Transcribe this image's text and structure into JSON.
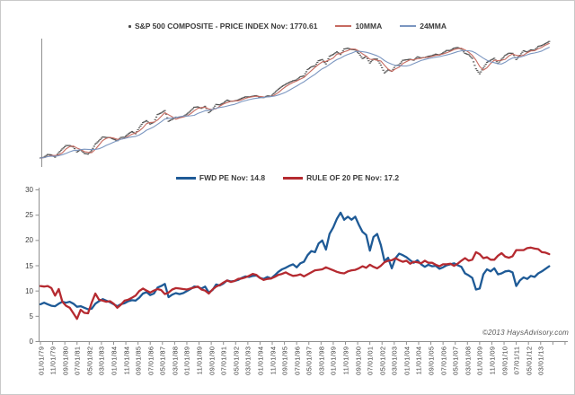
{
  "page": {
    "background": "#ffffff",
    "border_color": "#c9c9c9",
    "copyright": "©2013 HaysAdvisory.com"
  },
  "axis": {
    "tick_color": "#909090",
    "label_color": "#404040",
    "x_tick_labels": [
      "01/01/79",
      "11/01/79",
      "09/01/80",
      "07/01/81",
      "05/01/82",
      "03/01/83",
      "01/01/84",
      "11/01/84",
      "09/01/85",
      "07/01/86",
      "05/01/87",
      "03/01/88",
      "01/01/89",
      "11/01/89",
      "09/01/90",
      "07/01/91",
      "05/01/92",
      "03/01/93",
      "01/01/94",
      "11/01/94",
      "09/01/95",
      "07/01/96",
      "05/01/97",
      "03/01/98",
      "01/01/99",
      "11/01/99",
      "09/01/00",
      "07/01/01",
      "05/01/02",
      "03/01/03",
      "01/01/04",
      "11/01/04",
      "09/01/05",
      "07/01/06",
      "05/01/07",
      "03/01/08",
      "01/01/09",
      "11/01/09",
      "09/01/10",
      "07/01/11",
      "05/01/12",
      "03/01/13"
    ],
    "x_tick_step_months": 10
  },
  "chart_data": [
    {
      "type": "line",
      "title": "",
      "y_scale": "log",
      "y_range_hint": [
        95,
        1900
      ],
      "x_start": "1979-01",
      "x_step_months": 3,
      "legend_position": "top-center",
      "grid": false,
      "legend": [
        {
          "label": "S&P 500 COMPOSITE - PRICE INDEX Nov: 1770.61",
          "marker": "dot",
          "color": "#4a4a4a"
        },
        {
          "label": "10MMA",
          "marker": "line",
          "color": "#c66a60"
        },
        {
          "label": "24MMA",
          "marker": "line",
          "color": "#7b96c0"
        }
      ],
      "series": [
        {
          "name": "S&P 500 COMPOSITE - PRICE INDEX",
          "style": "marker-dash",
          "color": "#4a4a4a",
          "values": [
            100,
            102,
            109,
            108,
            102,
            114,
            125,
            136,
            136,
            131,
            116,
            123,
            112,
            110,
            120,
            141,
            153,
            168,
            166,
            165,
            159,
            153,
            166,
            167,
            181,
            192,
            182,
            211,
            239,
            251,
            231,
            242,
            292,
            304,
            322,
            247,
            259,
            274,
            272,
            278,
            295,
            318,
            349,
            353,
            340,
            358,
            306,
            330,
            375,
            371,
            388,
            417,
            404,
            408,
            418,
            436,
            452,
            451,
            459,
            466,
            446,
            444,
            463,
            459,
            501,
            545,
            584,
            616,
            645,
            671,
            687,
            741,
            757,
            885,
            947,
            970,
            1102,
            1134,
            1017,
            1229,
            1286,
            1373,
            1283,
            1469,
            1499,
            1455,
            1437,
            1320,
            1160,
            1224,
            1041,
            1148,
            1147,
            990,
            815,
            880,
            848,
            975,
            996,
            1112,
            1126,
            1141,
            1115,
            1212,
            1181,
            1191,
            1229,
            1248,
            1295,
            1270,
            1336,
            1418,
            1421,
            1503,
            1527,
            1468,
            1323,
            1280,
            1166,
            903,
            798,
            919,
            1057,
            1115,
            1169,
            1031,
            1141,
            1258,
            1326,
            1321,
            1131,
            1258,
            1408,
            1362,
            1441,
            1426,
            1569,
            1606,
            1682,
            1770
          ]
        },
        {
          "name": "10MMA",
          "style": "line",
          "color": "#c66a60",
          "derived": "rolling_mean_quarters_3"
        },
        {
          "name": "24MMA",
          "style": "line",
          "color": "#7b96c0",
          "derived": "rolling_mean_quarters_8"
        }
      ],
      "last_point": {
        "date": "Nov 2013",
        "value": 1770.61
      }
    },
    {
      "type": "line",
      "title": "",
      "ylim": [
        0,
        30
      ],
      "yticks": [
        0,
        5,
        10,
        15,
        20,
        25,
        30
      ],
      "x_start": "1979-01",
      "x_step_months": 3,
      "legend_position": "top-center",
      "grid": false,
      "legend": [
        {
          "label": "FWD PE Nov: 14.8",
          "marker": "line",
          "color": "#1e5a96"
        },
        {
          "label": "RULE OF 20 PE Nov: 17.2",
          "marker": "line",
          "color": "#b52a30"
        }
      ],
      "series": [
        {
          "name": "FWD PE",
          "style": "line",
          "color": "#1e5a96",
          "values": [
            7.3,
            7.6,
            7.3,
            7.0,
            6.9,
            7.4,
            7.8,
            7.6,
            7.8,
            7.4,
            6.8,
            6.9,
            6.6,
            6.3,
            6.4,
            7.4,
            7.9,
            8.3,
            8.0,
            7.7,
            7.3,
            6.9,
            7.3,
            7.5,
            7.9,
            8.1,
            8.0,
            8.6,
            9.4,
            9.7,
            9.1,
            9.4,
            10.6,
            10.9,
            11.3,
            8.7,
            9.2,
            9.5,
            9.3,
            9.5,
            9.9,
            10.3,
            10.8,
            10.7,
            10.4,
            10.8,
            9.6,
            10.1,
            11.2,
            11.0,
            11.4,
            12.0,
            11.8,
            11.9,
            12.1,
            12.5,
            12.8,
            12.7,
            12.9,
            13.0,
            12.5,
            12.3,
            12.7,
            12.4,
            13.0,
            13.7,
            14.2,
            14.5,
            14.9,
            15.2,
            14.6,
            15.4,
            15.7,
            17.0,
            17.8,
            17.6,
            19.3,
            19.9,
            18.1,
            21.2,
            22.5,
            24.2,
            25.4,
            24.0,
            24.6,
            24.0,
            24.6,
            23.0,
            21.6,
            21.0,
            17.9,
            20.6,
            21.2,
            19.0,
            15.8,
            16.5,
            14.4,
            16.4,
            17.3,
            17.0,
            16.6,
            16.0,
            15.5,
            16.0,
            15.2,
            14.7,
            15.1,
            14.8,
            14.9,
            14.3,
            14.6,
            15.0,
            15.2,
            15.4,
            15.0,
            14.7,
            13.4,
            13.0,
            12.5,
            10.2,
            10.4,
            13.2,
            14.2,
            13.8,
            14.4,
            13.2,
            13.4,
            13.8,
            13.9,
            13.6,
            10.9,
            12.0,
            12.6,
            12.3,
            12.9,
            12.7,
            13.4,
            13.8,
            14.3,
            14.8
          ]
        },
        {
          "name": "RULE OF 20 PE",
          "style": "line",
          "color": "#b52a30",
          "values": [
            10.9,
            10.8,
            10.9,
            10.5,
            9.0,
            10.3,
            7.8,
            7.0,
            6.6,
            5.5,
            4.4,
            6.2,
            5.6,
            5.5,
            7.6,
            9.4,
            8.2,
            8.0,
            7.8,
            7.9,
            7.4,
            6.6,
            7.2,
            8.0,
            8.2,
            8.6,
            9.0,
            9.9,
            10.4,
            10.0,
            9.6,
            10.0,
            10.3,
            10.1,
            9.3,
            9.6,
            10.2,
            10.5,
            10.4,
            10.3,
            10.2,
            10.4,
            10.6,
            10.8,
            10.2,
            10.0,
            9.4,
            10.2,
            10.8,
            11.1,
            11.6,
            12.0,
            11.7,
            11.9,
            12.3,
            12.4,
            12.6,
            12.9,
            13.3,
            13.1,
            12.5,
            12.1,
            12.3,
            12.4,
            12.7,
            13.1,
            13.3,
            13.6,
            13.2,
            12.9,
            13.0,
            13.2,
            12.8,
            13.2,
            13.6,
            14.0,
            14.1,
            14.2,
            14.6,
            14.3,
            14.0,
            13.7,
            13.5,
            13.4,
            13.8,
            14.0,
            14.1,
            14.4,
            14.8,
            14.5,
            15.1,
            14.7,
            14.4,
            14.9,
            15.6,
            15.9,
            16.0,
            16.4,
            16.0,
            15.7,
            15.9,
            15.3,
            15.7,
            15.6,
            15.4,
            15.9,
            15.5,
            15.5,
            15.1,
            14.8,
            15.2,
            15.2,
            15.3,
            14.9,
            15.3,
            15.9,
            16.4,
            15.9,
            16.1,
            17.6,
            17.2,
            16.4,
            16.6,
            16.1,
            16.1,
            16.9,
            17.4,
            16.7,
            16.5,
            16.8,
            18.0,
            18.0,
            18.0,
            18.4,
            18.5,
            18.3,
            18.2,
            17.6,
            17.5,
            17.2
          ]
        }
      ],
      "last_points": {
        "FWD PE": 14.8,
        "RULE OF 20 PE": 17.2
      }
    }
  ]
}
